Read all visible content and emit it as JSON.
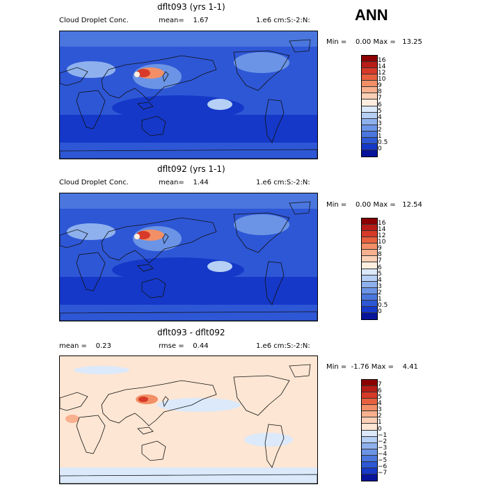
{
  "season": "ANN",
  "panels": [
    {
      "title": "dflt093 (yrs 1-1)",
      "left": "Cloud Droplet Conc.",
      "middle": "mean=    1.67",
      "right": "1.e6 cm:S:-2:N:",
      "minmax": "Min =    0.00 Max =   13.25",
      "scale_labels": [
        "16",
        "14",
        "12",
        "10",
        "9",
        "8",
        "7",
        "6",
        "5",
        "4",
        "3",
        "2",
        "1",
        "0.5",
        "0"
      ],
      "scale_colors": [
        "#8b0000",
        "#b81c16",
        "#d73a28",
        "#e8613f",
        "#f28f66",
        "#f8b08f",
        "#fbd0b6",
        "#fdeedf",
        "#dbe9fb",
        "#b6cff5",
        "#8eb1ee",
        "#6b94e6",
        "#4a76de",
        "#2e57d6",
        "#1538c8",
        "#06139a"
      ],
      "map_type": "field"
    },
    {
      "title": "dflt092 (yrs 1-1)",
      "left": "Cloud Droplet Conc.",
      "middle": "mean=    1.44",
      "right": "1.e6 cm:S:-2:N:",
      "minmax": "Min =    0.00 Max =   12.54",
      "scale_labels": [
        "16",
        "14",
        "12",
        "10",
        "9",
        "8",
        "7",
        "6",
        "5",
        "4",
        "3",
        "2",
        "1",
        "0.5",
        "0"
      ],
      "scale_colors": [
        "#8b0000",
        "#b81c16",
        "#d73a28",
        "#e8613f",
        "#f28f66",
        "#f8b08f",
        "#fbd0b6",
        "#fdeedf",
        "#dbe9fb",
        "#b6cff5",
        "#8eb1ee",
        "#6b94e6",
        "#4a76de",
        "#2e57d6",
        "#1538c8",
        "#06139a"
      ],
      "map_type": "field"
    },
    {
      "title": "dflt093 - dflt092",
      "left": "mean =    0.23",
      "middle": "rmse =    0.44",
      "right": "1.e6 cm:S:-2:N:",
      "minmax": "Min =  -1.76 Max =    4.41",
      "scale_labels": [
        "7",
        "6",
        "5",
        "4",
        "3",
        "2",
        "1",
        "0",
        "−1",
        "−2",
        "−3",
        "−4",
        "−5",
        "−6",
        "−7"
      ],
      "scale_colors": [
        "#8b0000",
        "#b81c16",
        "#d73a28",
        "#e8613f",
        "#f28f66",
        "#f8b08f",
        "#fbd0b6",
        "#fde6d3",
        "#dbe9fb",
        "#b6cff5",
        "#8eb1ee",
        "#6b94e6",
        "#4a76de",
        "#2e57d6",
        "#1538c8",
        "#06139a"
      ],
      "map_type": "diff"
    }
  ],
  "chart_data": [
    {
      "type": "heatmap",
      "title": "dflt093 (yrs 1-1)",
      "subtitle": "Cloud Droplet Conc.",
      "units": "1.e6 cm:S:-2:N:",
      "mean": 1.67,
      "min": 0.0,
      "max": 13.25,
      "colorbar_levels": [
        0,
        0.5,
        1,
        2,
        3,
        4,
        5,
        6,
        7,
        8,
        9,
        10,
        12,
        14,
        16
      ],
      "projection": "global lat-lon, Pacific-centered"
    },
    {
      "type": "heatmap",
      "title": "dflt092 (yrs 1-1)",
      "subtitle": "Cloud Droplet Conc.",
      "units": "1.e6 cm:S:-2:N:",
      "mean": 1.44,
      "min": 0.0,
      "max": 12.54,
      "colorbar_levels": [
        0,
        0.5,
        1,
        2,
        3,
        4,
        5,
        6,
        7,
        8,
        9,
        10,
        12,
        14,
        16
      ],
      "projection": "global lat-lon, Pacific-centered"
    },
    {
      "type": "heatmap",
      "title": "dflt093 - dflt092",
      "units": "1.e6 cm:S:-2:N:",
      "mean": 0.23,
      "rmse": 0.44,
      "min": -1.76,
      "max": 4.41,
      "colorbar_levels": [
        -7,
        -6,
        -5,
        -4,
        -3,
        -2,
        -1,
        0,
        1,
        2,
        3,
        4,
        5,
        6,
        7
      ],
      "projection": "global lat-lon, Pacific-centered"
    }
  ]
}
